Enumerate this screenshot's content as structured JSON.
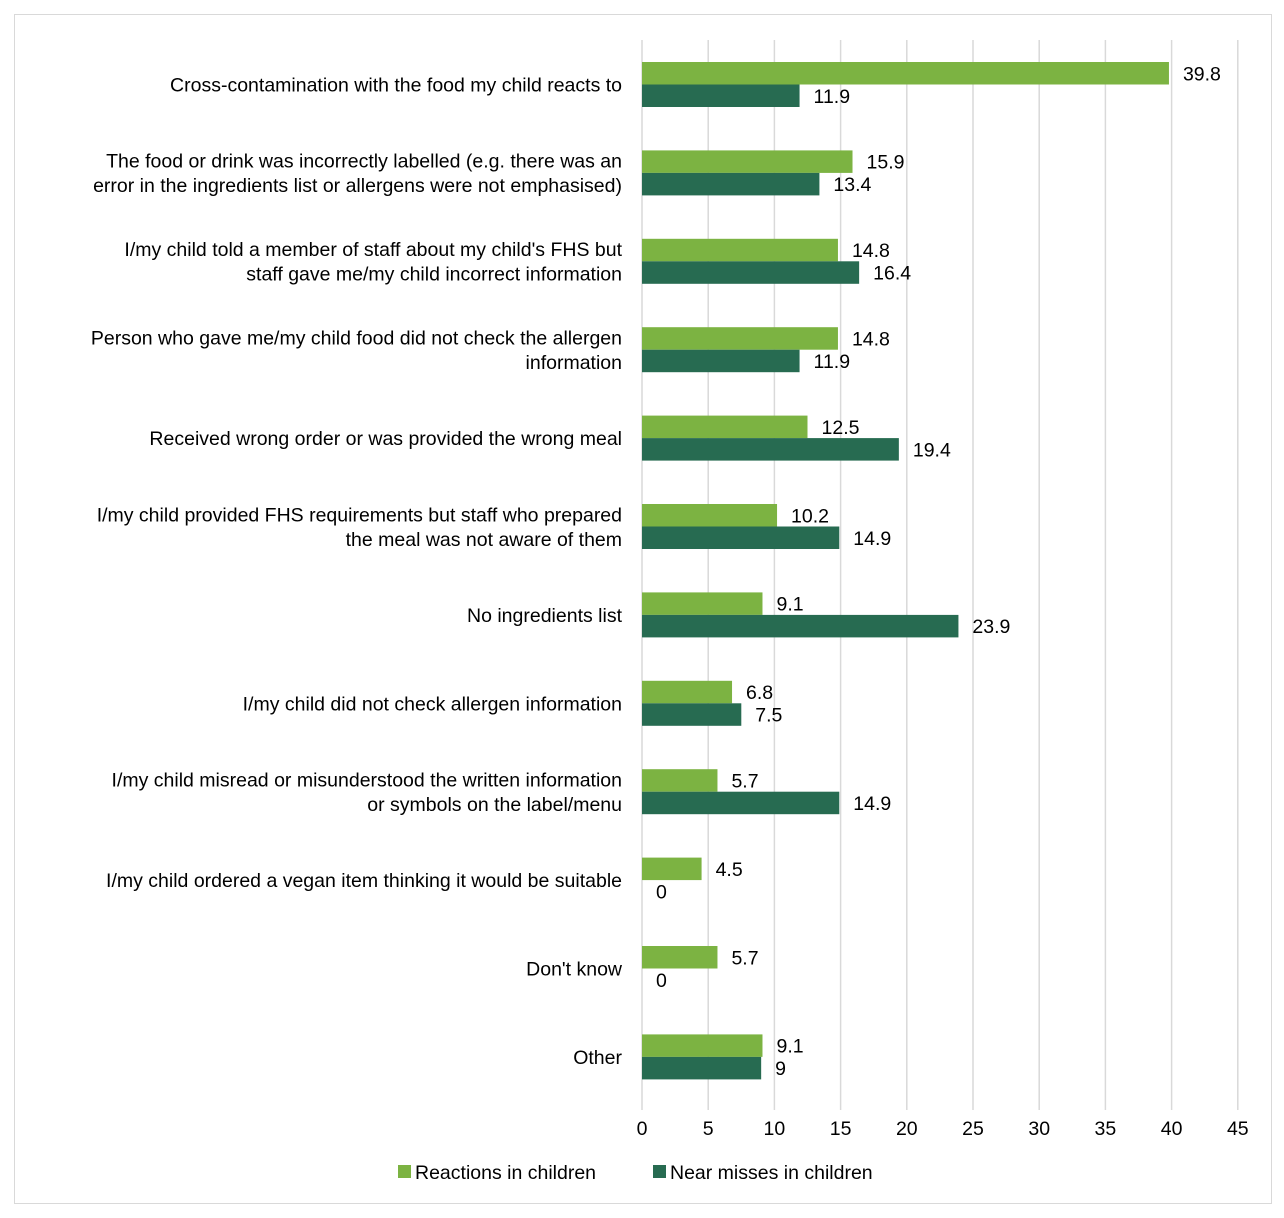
{
  "chart_data": {
    "type": "bar",
    "orientation": "horizontal",
    "title": "",
    "xlabel": "",
    "ylabel": "",
    "xlim": [
      0,
      45
    ],
    "xticks": [
      0,
      5,
      10,
      15,
      20,
      25,
      30,
      35,
      40,
      45
    ],
    "grid": "vertical",
    "legend_position": "bottom",
    "categories": [
      [
        "Cross-contamination with the food my child reacts to"
      ],
      [
        "The food or drink was incorrectly labelled (e.g. there was an",
        "error in the ingredients list or allergens were not emphasised)"
      ],
      [
        "I/my child told a member of staff about my child's FHS but",
        "staff gave me/my child incorrect information"
      ],
      [
        "Person who gave me/my child food did not check the allergen",
        "information"
      ],
      [
        "Received wrong order or was provided the wrong meal"
      ],
      [
        "I/my child provided FHS requirements but staff who prepared",
        "the meal was not aware of them"
      ],
      [
        "No ingredients list"
      ],
      [
        "I/my child did not check allergen information"
      ],
      [
        "I/my child misread or misunderstood the written information",
        "or symbols on the label/menu"
      ],
      [
        "I/my child ordered a vegan item thinking it would be suitable"
      ],
      [
        "Don't know"
      ],
      [
        "Other"
      ]
    ],
    "series": [
      {
        "name": "Reactions in children",
        "color": "#7cb342",
        "values": [
          39.8,
          15.9,
          14.8,
          14.8,
          12.5,
          10.2,
          9.1,
          6.8,
          5.7,
          4.5,
          5.7,
          9.1
        ]
      },
      {
        "name": "Near misses in children",
        "color": "#276b51",
        "values": [
          11.9,
          13.4,
          16.4,
          11.9,
          19.4,
          14.9,
          23.9,
          7.5,
          14.9,
          0,
          0,
          9
        ]
      }
    ]
  },
  "colors": {
    "gridline": "#d9d9d9",
    "frame": "#d9d9d9"
  }
}
